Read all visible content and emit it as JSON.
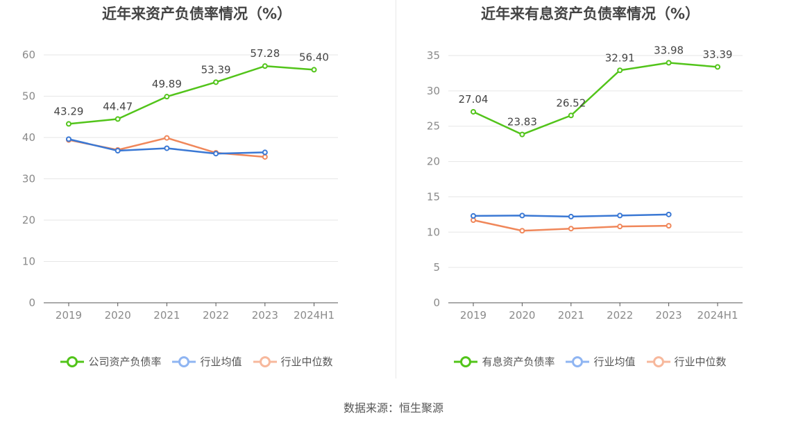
{
  "chart_data": [
    {
      "type": "line",
      "title": "近年来资产负债率情况（%）",
      "categories": [
        "2019",
        "2020",
        "2021",
        "2022",
        "2023",
        "2024H1"
      ],
      "ylim": [
        0,
        60
      ],
      "yticks": [
        0,
        10,
        20,
        30,
        40,
        50,
        60
      ],
      "xlabel": "",
      "ylabel": "",
      "grid": true,
      "legend_position": "bottom",
      "series": [
        {
          "name": "公司资产负债率",
          "color": "#52c41a",
          "values": [
            43.29,
            44.47,
            49.89,
            53.39,
            57.28,
            56.4
          ],
          "labels": [
            "43.29",
            "44.47",
            "49.89",
            "53.39",
            "57.28",
            "56.40"
          ]
        },
        {
          "name": "行业均值",
          "color": "#3a78d4",
          "values": [
            39.6,
            36.8,
            37.4,
            36.1,
            36.4,
            null
          ]
        },
        {
          "name": "行业中位数",
          "color": "#f0875a",
          "values": [
            39.4,
            37.0,
            39.9,
            36.3,
            35.3,
            null
          ]
        }
      ]
    },
    {
      "type": "line",
      "title": "近年来有息资产负债率情况（%）",
      "categories": [
        "2019",
        "2020",
        "2021",
        "2022",
        "2023",
        "2024H1"
      ],
      "ylim": [
        0,
        35
      ],
      "yticks": [
        0,
        5,
        10,
        15,
        20,
        25,
        30,
        35
      ],
      "xlabel": "",
      "ylabel": "",
      "grid": true,
      "legend_position": "bottom",
      "series": [
        {
          "name": "有息资产负债率",
          "color": "#52c41a",
          "values": [
            27.04,
            23.83,
            26.52,
            32.91,
            33.98,
            33.39
          ],
          "labels": [
            "27.04",
            "23.83",
            "26.52",
            "32.91",
            "33.98",
            "33.39"
          ]
        },
        {
          "name": "行业均值",
          "color": "#3a78d4",
          "values": [
            12.3,
            12.35,
            12.2,
            12.35,
            12.5,
            null
          ]
        },
        {
          "name": "行业中位数",
          "color": "#f0875a",
          "values": [
            11.7,
            10.2,
            10.5,
            10.8,
            10.9,
            null
          ]
        }
      ]
    }
  ],
  "legend_colors": {
    "company": "#52c41a",
    "industry_mean": "#8fb5f2",
    "industry_median": "#f7b89c"
  },
  "footer": {
    "source": "数据来源：恒生聚源"
  }
}
